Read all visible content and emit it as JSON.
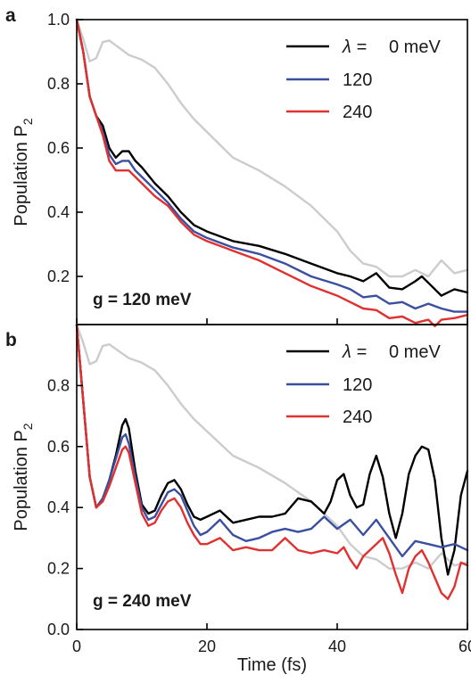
{
  "chart_data": [
    {
      "type": "line",
      "panel": "a",
      "xlim": [
        0,
        60
      ],
      "ylim": [
        0.05,
        1.0
      ],
      "ylabel": "Population P",
      "ylabel_sub": "2",
      "xlabel": "",
      "yticks": [
        0.2,
        0.4,
        0.6,
        0.8,
        1.0
      ],
      "ytick_labels": [
        "0.2",
        "0.4",
        "0.6",
        "0.8",
        "1.0"
      ],
      "xticks": [
        0,
        20,
        40,
        60
      ],
      "xtick_labels": [],
      "annotation": "g = 120 meV",
      "legend": {
        "position": "top-right",
        "entries": [
          {
            "symbol": "λ =",
            "label": "0 meV",
            "color": "#000000"
          },
          {
            "label": "120",
            "color": "#3a4fa0"
          },
          {
            "label": "240",
            "color": "#e03030"
          }
        ]
      },
      "series": [
        {
          "color": "#cccccc",
          "x": [
            0,
            1,
            2,
            3,
            4,
            5,
            6,
            8,
            10,
            12,
            14,
            16,
            18,
            20,
            24,
            28,
            32,
            36,
            40,
            42,
            44,
            46,
            48,
            50,
            52,
            54,
            56,
            58,
            60
          ],
          "y": [
            1.0,
            0.94,
            0.87,
            0.88,
            0.93,
            0.935,
            0.92,
            0.89,
            0.875,
            0.85,
            0.8,
            0.74,
            0.69,
            0.65,
            0.57,
            0.53,
            0.48,
            0.42,
            0.34,
            0.28,
            0.24,
            0.23,
            0.2,
            0.2,
            0.22,
            0.2,
            0.25,
            0.21,
            0.22
          ]
        },
        {
          "color": "#000000",
          "x": [
            0,
            1,
            2,
            3,
            4,
            5,
            6,
            7,
            8,
            9,
            10,
            12,
            14,
            16,
            18,
            20,
            24,
            28,
            32,
            36,
            40,
            42,
            44,
            46,
            48,
            50,
            52,
            53,
            54,
            56,
            58,
            60
          ],
          "y": [
            1.0,
            0.9,
            0.76,
            0.7,
            0.67,
            0.6,
            0.57,
            0.59,
            0.59,
            0.56,
            0.54,
            0.49,
            0.45,
            0.4,
            0.36,
            0.34,
            0.31,
            0.295,
            0.27,
            0.24,
            0.21,
            0.2,
            0.185,
            0.21,
            0.165,
            0.16,
            0.185,
            0.2,
            0.18,
            0.14,
            0.16,
            0.15
          ]
        },
        {
          "color": "#3a4fa0",
          "x": [
            0,
            1,
            2,
            3,
            4,
            5,
            6,
            7,
            8,
            9,
            10,
            12,
            14,
            16,
            18,
            20,
            24,
            28,
            32,
            36,
            40,
            42,
            44,
            46,
            48,
            50,
            52,
            54,
            56,
            58,
            60
          ],
          "y": [
            1.0,
            0.9,
            0.76,
            0.7,
            0.65,
            0.58,
            0.55,
            0.56,
            0.56,
            0.53,
            0.51,
            0.47,
            0.43,
            0.38,
            0.34,
            0.32,
            0.29,
            0.27,
            0.24,
            0.2,
            0.175,
            0.16,
            0.135,
            0.14,
            0.115,
            0.12,
            0.1,
            0.115,
            0.1,
            0.09,
            0.09
          ]
        },
        {
          "color": "#e03030",
          "x": [
            0,
            1,
            2,
            3,
            4,
            5,
            6,
            7,
            8,
            9,
            10,
            12,
            14,
            16,
            18,
            20,
            24,
            28,
            32,
            36,
            40,
            42,
            44,
            46,
            48,
            50,
            52,
            54,
            55,
            56,
            58,
            60
          ],
          "y": [
            1.0,
            0.9,
            0.76,
            0.7,
            0.64,
            0.56,
            0.53,
            0.53,
            0.53,
            0.51,
            0.49,
            0.45,
            0.42,
            0.37,
            0.33,
            0.31,
            0.28,
            0.25,
            0.21,
            0.17,
            0.14,
            0.12,
            0.1,
            0.095,
            0.07,
            0.075,
            0.055,
            0.065,
            0.045,
            0.065,
            0.07,
            0.08
          ]
        }
      ]
    },
    {
      "type": "line",
      "panel": "b",
      "xlim": [
        0,
        60
      ],
      "ylim": [
        0.0,
        1.0
      ],
      "ylabel": "Population P",
      "ylabel_sub": "2",
      "xlabel": "Time (fs)",
      "yticks": [
        0.0,
        0.2,
        0.4,
        0.6,
        0.8
      ],
      "ytick_labels": [
        "0.0",
        "0.2",
        "0.4",
        "0.6",
        "0.8"
      ],
      "xticks": [
        0,
        20,
        40,
        60
      ],
      "xtick_labels": [
        "0",
        "20",
        "40",
        "60"
      ],
      "annotation": "g = 240 meV",
      "legend": {
        "position": "top-right",
        "entries": [
          {
            "symbol": "λ =",
            "label": "0 meV",
            "color": "#000000"
          },
          {
            "label": "120",
            "color": "#3a4fa0"
          },
          {
            "label": "240",
            "color": "#e03030"
          }
        ]
      },
      "series": [
        {
          "color": "#cccccc",
          "x": [
            0,
            1,
            2,
            3,
            4,
            5,
            6,
            8,
            10,
            12,
            14,
            16,
            18,
            20,
            24,
            28,
            32,
            36,
            40,
            42,
            44,
            46,
            48,
            50,
            52,
            54,
            56,
            58,
            60
          ],
          "y": [
            1.0,
            0.94,
            0.87,
            0.88,
            0.93,
            0.935,
            0.92,
            0.89,
            0.875,
            0.85,
            0.8,
            0.74,
            0.69,
            0.65,
            0.57,
            0.53,
            0.48,
            0.42,
            0.34,
            0.28,
            0.24,
            0.23,
            0.2,
            0.2,
            0.22,
            0.2,
            0.25,
            0.21,
            0.22
          ]
        },
        {
          "color": "#000000",
          "x": [
            0,
            1,
            2,
            3,
            4,
            5,
            6,
            7,
            7.5,
            8,
            9,
            10,
            11,
            12,
            13,
            14,
            15,
            16,
            17,
            18,
            19,
            20,
            22,
            24,
            26,
            28,
            30,
            32,
            34,
            36,
            38,
            39,
            40,
            41,
            42,
            43,
            44,
            45,
            46,
            47,
            48,
            49,
            50,
            51,
            52,
            53,
            54,
            55,
            56,
            57,
            58,
            59,
            60
          ],
          "y": [
            1.0,
            0.75,
            0.5,
            0.4,
            0.43,
            0.49,
            0.57,
            0.67,
            0.69,
            0.66,
            0.52,
            0.41,
            0.38,
            0.39,
            0.44,
            0.48,
            0.49,
            0.46,
            0.41,
            0.37,
            0.36,
            0.37,
            0.39,
            0.35,
            0.36,
            0.37,
            0.37,
            0.38,
            0.43,
            0.42,
            0.38,
            0.42,
            0.49,
            0.51,
            0.44,
            0.4,
            0.41,
            0.51,
            0.57,
            0.5,
            0.38,
            0.3,
            0.38,
            0.51,
            0.57,
            0.6,
            0.59,
            0.49,
            0.3,
            0.18,
            0.26,
            0.44,
            0.52
          ]
        },
        {
          "color": "#3a4fa0",
          "x": [
            0,
            1,
            2,
            3,
            4,
            5,
            6,
            7,
            7.5,
            8,
            9,
            10,
            11,
            12,
            13,
            14,
            15,
            16,
            17,
            18,
            19,
            20,
            22,
            24,
            26,
            28,
            30,
            32,
            34,
            36,
            38,
            40,
            42,
            44,
            46,
            48,
            50,
            52,
            54,
            56,
            58,
            60
          ],
          "y": [
            1.0,
            0.75,
            0.5,
            0.4,
            0.43,
            0.49,
            0.56,
            0.63,
            0.64,
            0.61,
            0.5,
            0.4,
            0.36,
            0.37,
            0.41,
            0.45,
            0.46,
            0.44,
            0.39,
            0.34,
            0.31,
            0.32,
            0.36,
            0.31,
            0.29,
            0.3,
            0.32,
            0.33,
            0.32,
            0.33,
            0.37,
            0.33,
            0.36,
            0.31,
            0.36,
            0.3,
            0.24,
            0.29,
            0.28,
            0.27,
            0.28,
            0.26
          ]
        },
        {
          "color": "#e03030",
          "x": [
            0,
            1,
            2,
            3,
            4,
            5,
            6,
            7,
            7.5,
            8,
            9,
            10,
            11,
            12,
            13,
            14,
            15,
            16,
            17,
            18,
            19,
            20,
            22,
            24,
            26,
            28,
            30,
            32,
            34,
            36,
            38,
            40,
            41,
            42,
            43,
            44,
            45,
            46,
            47,
            48,
            49,
            50,
            51,
            52,
            53,
            54,
            55,
            56,
            57,
            58,
            59,
            60
          ],
          "y": [
            1.0,
            0.75,
            0.5,
            0.4,
            0.42,
            0.47,
            0.53,
            0.59,
            0.6,
            0.58,
            0.48,
            0.38,
            0.34,
            0.35,
            0.39,
            0.42,
            0.43,
            0.4,
            0.35,
            0.31,
            0.28,
            0.28,
            0.3,
            0.26,
            0.27,
            0.26,
            0.26,
            0.3,
            0.26,
            0.25,
            0.26,
            0.25,
            0.27,
            0.23,
            0.2,
            0.24,
            0.26,
            0.28,
            0.3,
            0.25,
            0.18,
            0.12,
            0.2,
            0.24,
            0.26,
            0.22,
            0.17,
            0.12,
            0.1,
            0.14,
            0.22,
            0.21
          ]
        }
      ]
    }
  ]
}
